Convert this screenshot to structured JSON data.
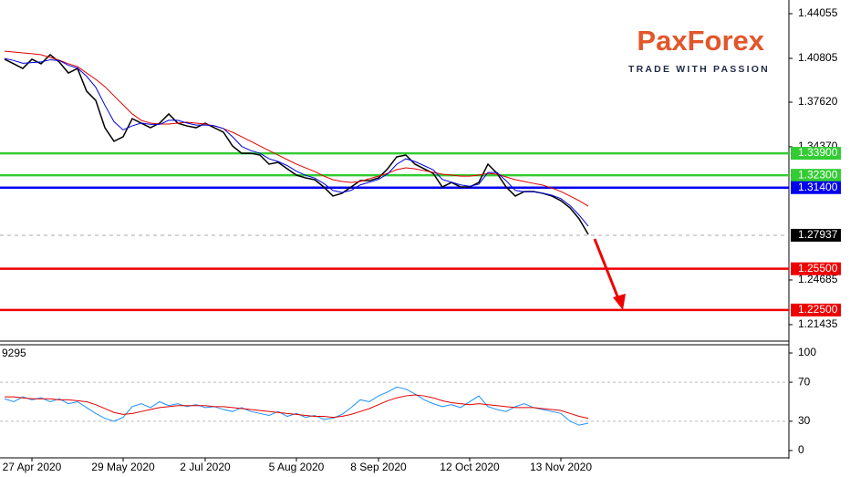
{
  "chart_data": [
    {
      "type": "line",
      "categories": [
        null,
        null,
        null,
        "27 Apr 2020",
        null,
        null,
        null,
        null,
        null,
        null,
        null,
        null,
        null,
        "29 May 2020",
        null,
        null,
        null,
        null,
        null,
        null,
        null,
        null,
        "2 Jul 2020",
        null,
        null,
        null,
        null,
        null,
        null,
        null,
        null,
        null,
        "5 Aug 2020",
        null,
        null,
        null,
        null,
        null,
        null,
        null,
        null,
        "8 Sep 2020",
        null,
        null,
        null,
        null,
        null,
        null,
        null,
        null,
        null,
        "12 Oct 2020",
        null,
        null,
        null,
        null,
        null,
        null,
        null,
        null,
        null,
        "13 Nov 2020",
        null,
        null,
        null
      ],
      "series": [
        {
          "color": "#000000",
          "values": [
            1.4074,
            1.4041,
            1.4007,
            1.4074,
            1.4041,
            1.4107,
            1.4054,
            1.3974,
            1.4007,
            1.3841,
            1.3775,
            1.3576,
            1.3477,
            1.351,
            1.3642,
            1.3609,
            1.3576,
            1.3609,
            1.3676,
            1.3609,
            1.3589,
            1.3576,
            1.3609,
            1.3576,
            1.3543,
            1.3443,
            1.339,
            1.339,
            1.3377,
            1.3311,
            1.3324,
            1.3277,
            1.3231,
            1.3211,
            1.3198,
            1.3145,
            1.3079,
            1.3099,
            1.3145,
            1.3191,
            1.3191,
            1.3211,
            1.3277,
            1.3364,
            1.3377,
            1.3311,
            1.3277,
            1.3244,
            1.3145,
            1.3178,
            1.3145,
            1.3145,
            1.3178,
            1.3311,
            1.3244,
            1.3145,
            1.3079,
            1.3112,
            1.3112,
            1.3099,
            1.3079,
            1.3045,
            1.2993,
            1.2913,
            1.28
          ]
        },
        {
          "color": "#e00000",
          "values": [
            1.4133,
            1.4127,
            1.412,
            1.4114,
            1.4107,
            1.4087,
            1.4067,
            1.4041,
            1.4021,
            1.3974,
            1.3928,
            1.3875,
            1.3808,
            1.3742,
            1.3676,
            1.3629,
            1.3609,
            1.3603,
            1.3603,
            1.3609,
            1.3616,
            1.3609,
            1.3603,
            1.3589,
            1.3569,
            1.3543,
            1.351,
            1.3477,
            1.3443,
            1.341,
            1.3377,
            1.3344,
            1.3311,
            1.3284,
            1.3258,
            1.3224,
            1.3198,
            1.3185,
            1.3178,
            1.3185,
            1.3205,
            1.3224,
            1.3244,
            1.3271,
            1.3284,
            1.3277,
            1.3264,
            1.3251,
            1.3238,
            1.3231,
            1.3224,
            1.3224,
            1.3231,
            1.3244,
            1.3238,
            1.3218,
            1.3198,
            1.3185,
            1.3171,
            1.3158,
            1.3138,
            1.3112,
            1.3079,
            1.3045,
            1.3005
          ]
        },
        {
          "color": "#0000e0",
          "values": [
            1.408,
            1.4065,
            1.4045,
            1.405,
            1.4055,
            1.407,
            1.4065,
            1.403,
            1.401,
            1.395,
            1.387,
            1.374,
            1.362,
            1.356,
            1.359,
            1.361,
            1.36,
            1.36,
            1.363,
            1.363,
            1.361,
            1.3595,
            1.3595,
            1.359,
            1.357,
            1.351,
            1.344,
            1.341,
            1.339,
            1.335,
            1.333,
            1.33,
            1.326,
            1.323,
            1.321,
            1.317,
            1.312,
            1.3105,
            1.312,
            1.316,
            1.318,
            1.32,
            1.324,
            1.331,
            1.335,
            1.333,
            1.33,
            1.327,
            1.32,
            1.318,
            1.316,
            1.315,
            1.3165,
            1.325,
            1.325,
            1.319,
            1.312,
            1.311,
            1.311,
            1.31,
            1.3085,
            1.306,
            1.301,
            1.294,
            1.286
          ]
        }
      ],
      "ylim": [
        1.2037,
        1.4505
      ],
      "yticks": [
        1.44055,
        1.40805,
        {
          "value": 1.3762,
          "label": "1.37620"
        },
        {
          "value": 1.3437,
          "label": "1.34370"
        },
        1.24685,
        1.21435
      ],
      "levels": [
        {
          "value": 1.339,
          "label": "1.33900",
          "color": "#33cc33"
        },
        {
          "value": 1.323,
          "label": "1.32300",
          "color": "#33cc33"
        },
        {
          "value": 1.314,
          "label": "1.31400",
          "color": "#0000ee"
        },
        {
          "value": 1.255,
          "label": "1.25500",
          "color": "#ee0000"
        },
        {
          "value": 1.225,
          "label": "1.22500",
          "color": "#ee0000"
        }
      ],
      "last_price": 1.27937
    },
    {
      "type": "line",
      "label": "9295",
      "series": [
        {
          "color": "#1e90ff",
          "values": [
            53,
            50,
            55,
            52,
            54,
            50,
            53,
            48,
            50,
            44,
            38,
            33,
            30,
            34,
            45,
            48,
            44,
            50,
            46,
            48,
            45,
            47,
            44,
            45,
            42,
            40,
            44,
            40,
            38,
            36,
            40,
            35,
            38,
            34,
            36,
            32,
            33,
            37,
            44,
            52,
            50,
            56,
            60,
            65,
            63,
            58,
            52,
            48,
            45,
            47,
            44,
            50,
            56,
            45,
            42,
            40,
            45,
            48,
            44,
            42,
            40,
            38,
            30,
            26,
            28
          ]
        },
        {
          "color": "#e00000",
          "values": [
            55,
            55,
            54,
            53,
            53,
            53,
            52,
            52,
            51,
            50,
            47,
            43,
            39,
            37,
            38,
            40,
            42,
            44,
            45,
            46,
            46,
            46,
            46,
            45,
            45,
            44,
            43,
            42,
            41,
            40,
            39,
            38,
            37,
            36,
            35,
            35,
            34,
            35,
            37,
            40,
            43,
            47,
            51,
            54,
            56,
            57,
            56,
            54,
            51,
            49,
            48,
            47,
            48,
            47,
            46,
            45,
            44,
            44,
            44,
            43,
            42,
            41,
            38,
            35,
            33
          ]
        }
      ],
      "ylim": [
        -7.5,
        108.4
      ],
      "yticks": [
        100,
        70,
        30,
        0
      ],
      "grid": true
    }
  ],
  "logo": {
    "name": "PaxForex",
    "tagline": "TRADE WITH PASSION"
  }
}
